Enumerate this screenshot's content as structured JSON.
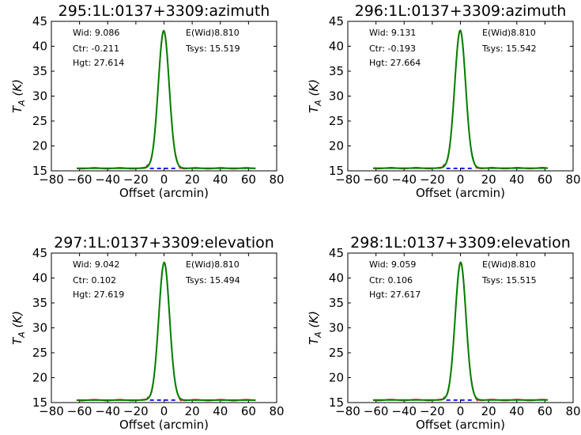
{
  "chart_data": [
    {
      "type": "line",
      "title": "295:1L:0137+3309:azimuth",
      "xlabel": "Offset (arcmin)",
      "ylabel": "T_A (K)",
      "xlim": [
        -80,
        80
      ],
      "ylim": [
        15,
        45
      ],
      "xticks": [
        -80,
        -60,
        -40,
        -20,
        0,
        20,
        40,
        60,
        80
      ],
      "yticks": [
        15,
        20,
        25,
        30,
        35,
        40,
        45
      ],
      "grid": false,
      "annotations": {
        "wid": "Wid: 9.086",
        "ctr": "Ctr: -0.211",
        "hgt": "Hgt: 27.614",
        "ewid": "E(Wid)8.810",
        "tsys": "Tsys: 15.519"
      },
      "fit": {
        "baseline": 15.519,
        "height": 27.614,
        "center": -0.211,
        "fwhm": 9.086,
        "color": "#008000"
      },
      "data": {
        "color": "#d62728",
        "x_range": [
          -62,
          65
        ]
      },
      "baseline_marker": {
        "color": "#0000ff",
        "x": [
          -10,
          10
        ],
        "y": 15.5
      }
    },
    {
      "type": "line",
      "title": "296:1L:0137+3309:azimuth",
      "xlabel": "Offset (arcmin)",
      "ylabel": "T_A (K)",
      "xlim": [
        -80,
        80
      ],
      "ylim": [
        15,
        45
      ],
      "xticks": [
        -80,
        -60,
        -40,
        -20,
        0,
        20,
        40,
        60,
        80
      ],
      "yticks": [
        15,
        20,
        25,
        30,
        35,
        40,
        45
      ],
      "grid": false,
      "annotations": {
        "wid": "Wid: 9.131",
        "ctr": "Ctr: -0.193",
        "hgt": "Hgt: 27.664",
        "ewid": "E(Wid)8.810",
        "tsys": "Tsys: 15.542"
      },
      "fit": {
        "baseline": 15.542,
        "height": 27.664,
        "center": -0.193,
        "fwhm": 9.131,
        "color": "#008000"
      },
      "data": {
        "color": "#d62728",
        "x_range": [
          -62,
          62
        ]
      },
      "baseline_marker": {
        "color": "#0000ff",
        "x": [
          -10,
          10
        ],
        "y": 15.5
      }
    },
    {
      "type": "line",
      "title": "297:1L:0137+3309:elevation",
      "xlabel": "Offset (arcmin)",
      "ylabel": "T_A (K)",
      "xlim": [
        -80,
        80
      ],
      "ylim": [
        15,
        45
      ],
      "xticks": [
        -80,
        -60,
        -40,
        -20,
        0,
        20,
        40,
        60,
        80
      ],
      "yticks": [
        15,
        20,
        25,
        30,
        35,
        40,
        45
      ],
      "grid": false,
      "annotations": {
        "wid": "Wid: 9.042",
        "ctr": "Ctr: 0.102",
        "hgt": "Hgt: 27.619",
        "ewid": "E(Wid)8.810",
        "tsys": "Tsys: 15.494"
      },
      "fit": {
        "baseline": 15.494,
        "height": 27.619,
        "center": 0.102,
        "fwhm": 9.042,
        "color": "#008000"
      },
      "data": {
        "color": "#d62728",
        "x_range": [
          -62,
          65
        ]
      },
      "baseline_marker": {
        "color": "#0000ff",
        "x": [
          -10,
          10
        ],
        "y": 15.5
      }
    },
    {
      "type": "line",
      "title": "298:1L:0137+3309:elevation",
      "xlabel": "Offset (arcmin)",
      "ylabel": "T_A (K)",
      "xlim": [
        -80,
        80
      ],
      "ylim": [
        15,
        45
      ],
      "xticks": [
        -80,
        -60,
        -40,
        -20,
        0,
        20,
        40,
        60,
        80
      ],
      "yticks": [
        15,
        20,
        25,
        30,
        35,
        40,
        45
      ],
      "grid": false,
      "annotations": {
        "wid": "Wid: 9.059",
        "ctr": "Ctr: 0.106",
        "hgt": "Hgt: 27.617",
        "ewid": "E(Wid)8.810",
        "tsys": "Tsys: 15.515"
      },
      "fit": {
        "baseline": 15.515,
        "height": 27.617,
        "center": 0.106,
        "fwhm": 9.059,
        "color": "#008000"
      },
      "data": {
        "color": "#d62728",
        "x_range": [
          -62,
          62
        ]
      },
      "baseline_marker": {
        "color": "#0000ff",
        "x": [
          -10,
          10
        ],
        "y": 15.5
      }
    }
  ]
}
